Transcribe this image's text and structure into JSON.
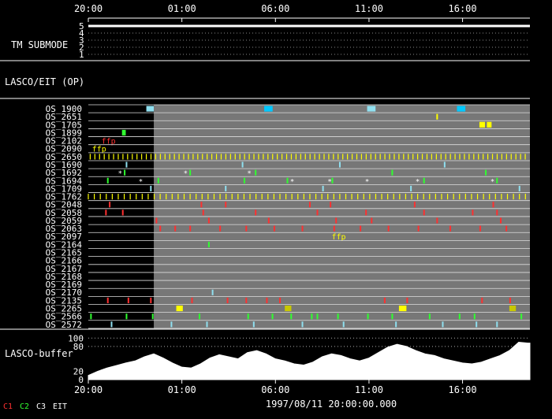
{
  "chart_data": {
    "type": "timeline",
    "title": "",
    "time_axis": {
      "ticks_top": [
        "20:00",
        "01:00",
        "06:00",
        "11:00",
        "16:00"
      ],
      "ticks_bottom": [
        "20:00",
        "01:00",
        "06:00",
        "11:00",
        "16:00"
      ],
      "range_hours": [
        0,
        23.6
      ]
    },
    "footer_label": "1997/08/11 20:00:00.000",
    "legend": [
      {
        "name": "C1",
        "color": "#ff3030"
      },
      {
        "name": "C2",
        "color": "#30ff30"
      },
      {
        "name": "C3",
        "color": "#ffffff"
      },
      {
        "name": "EIT",
        "color": "#ffffff"
      }
    ],
    "tm_panel": {
      "label": "TM SUBMODE",
      "levels": [
        "5",
        "4",
        "3",
        "2",
        "1"
      ],
      "value": 5
    },
    "section_label": "LASCO/EIT (OP)",
    "no_data_until_hours": 3.5,
    "rows": [
      {
        "label": "OS_1900",
        "events": [
          {
            "t": 3.1,
            "w": 0.4,
            "color": "#90e0f0"
          },
          {
            "t": 9.4,
            "w": 0.45,
            "color": "#00c8ff"
          },
          {
            "t": 14.9,
            "w": 0.45,
            "color": "#90e0f0"
          },
          {
            "t": 19.7,
            "w": 0.45,
            "color": "#00c8ff"
          }
        ]
      },
      {
        "label": "OS_2651",
        "events": [
          {
            "t": 18.6,
            "w": 0.08,
            "color": "#ffff00"
          }
        ]
      },
      {
        "label": "OS_1705",
        "events": [
          {
            "t": 20.9,
            "w": 0.3,
            "color": "#ffff00"
          },
          {
            "t": 21.3,
            "w": 0.25,
            "color": "#ffff00"
          }
        ]
      },
      {
        "label": "OS_1899",
        "events": [
          {
            "t": 1.8,
            "w": 0.2,
            "color": "#30ff30"
          }
        ]
      },
      {
        "label": "OS_2102",
        "events": [],
        "notes": [
          {
            "t": 0.7,
            "text": "ffp",
            "color": "#ff3030"
          }
        ]
      },
      {
        "label": "OS_2090",
        "events": [],
        "notes": [
          {
            "t": 0.2,
            "text": "ffp",
            "color": "#ffff00"
          }
        ]
      },
      {
        "label": "OS_2650",
        "periodic": {
          "start": 0.1,
          "step": 0.25,
          "end": 23.5,
          "color": "#ffff00"
        }
      },
      {
        "label": "OS_1690",
        "events": [
          {
            "t": 2.0,
            "w": 0.06,
            "color": "#90e0f0"
          },
          {
            "t": 8.2,
            "w": 0.06,
            "color": "#90e0f0"
          },
          {
            "t": 13.4,
            "w": 0.06,
            "color": "#90e0f0"
          },
          {
            "t": 19.0,
            "w": 0.06,
            "color": "#90e0f0"
          }
        ]
      },
      {
        "label": "OS_1692",
        "events": [
          {
            "t": 1.9,
            "w": 0.06,
            "color": "#30ff30"
          },
          {
            "t": 5.4,
            "w": 0.06,
            "color": "#30ff30"
          },
          {
            "t": 8.9,
            "w": 0.06,
            "color": "#30ff30"
          },
          {
            "t": 16.2,
            "w": 0.06,
            "color": "#30ff30"
          },
          {
            "t": 21.2,
            "w": 0.06,
            "color": "#30ff30"
          }
        ],
        "marks": [
          1.7,
          5.2,
          8.6
        ]
      },
      {
        "label": "OS_1694",
        "events": [
          {
            "t": 1.0,
            "w": 0.06,
            "color": "#30ff30"
          },
          {
            "t": 3.7,
            "w": 0.06,
            "color": "#30ff30"
          },
          {
            "t": 8.3,
            "w": 0.06,
            "color": "#30ff30"
          },
          {
            "t": 10.6,
            "w": 0.06,
            "color": "#30ff30"
          },
          {
            "t": 13.0,
            "w": 0.06,
            "color": "#30ff30"
          },
          {
            "t": 17.9,
            "w": 0.06,
            "color": "#30ff30"
          },
          {
            "t": 21.8,
            "w": 0.06,
            "color": "#30ff30"
          }
        ],
        "marks": [
          2.8,
          10.9,
          12.9,
          14.9,
          17.6,
          21.6
        ]
      },
      {
        "label": "OS_1709",
        "events": [
          {
            "t": 3.3,
            "w": 0.06,
            "color": "#90e0f0"
          },
          {
            "t": 7.3,
            "w": 0.06,
            "color": "#90e0f0"
          },
          {
            "t": 12.5,
            "w": 0.06,
            "color": "#90e0f0"
          },
          {
            "t": 17.2,
            "w": 0.06,
            "color": "#90e0f0"
          },
          {
            "t": 23.0,
            "w": 0.06,
            "color": "#90e0f0"
          }
        ]
      },
      {
        "label": "OS_1762",
        "periodic": {
          "start": 0.0,
          "step": 0.32,
          "end": 23.6,
          "color": "#ffff00"
        }
      },
      {
        "label": "OS_2048",
        "events": [
          {
            "t": 1.1,
            "w": 0.07,
            "color": "#ff3030"
          },
          {
            "t": 6.0,
            "w": 0.07,
            "color": "#ff3030"
          },
          {
            "t": 7.3,
            "w": 0.07,
            "color": "#ff3030"
          },
          {
            "t": 11.8,
            "w": 0.07,
            "color": "#ff3030"
          },
          {
            "t": 12.9,
            "w": 0.07,
            "color": "#ff3030"
          },
          {
            "t": 17.4,
            "w": 0.07,
            "color": "#ff3030"
          },
          {
            "t": 21.6,
            "w": 0.07,
            "color": "#ff3030"
          }
        ]
      },
      {
        "label": "OS_2058",
        "events": [
          {
            "t": 0.9,
            "w": 0.07,
            "color": "#ff3030"
          },
          {
            "t": 1.8,
            "w": 0.07,
            "color": "#ff3030"
          },
          {
            "t": 6.1,
            "w": 0.07,
            "color": "#ff3030"
          },
          {
            "t": 8.9,
            "w": 0.07,
            "color": "#ff3030"
          },
          {
            "t": 12.2,
            "w": 0.07,
            "color": "#ff3030"
          },
          {
            "t": 14.8,
            "w": 0.07,
            "color": "#ff3030"
          },
          {
            "t": 17.9,
            "w": 0.07,
            "color": "#ff3030"
          },
          {
            "t": 20.5,
            "w": 0.07,
            "color": "#ff3030"
          },
          {
            "t": 21.8,
            "w": 0.07,
            "color": "#ff3030"
          }
        ]
      },
      {
        "label": "OS_2059",
        "events": [
          {
            "t": 3.6,
            "w": 0.07,
            "color": "#ff3030"
          },
          {
            "t": 6.4,
            "w": 0.07,
            "color": "#ff3030"
          },
          {
            "t": 9.6,
            "w": 0.07,
            "color": "#ff3030"
          },
          {
            "t": 13.2,
            "w": 0.07,
            "color": "#ff3030"
          },
          {
            "t": 15.1,
            "w": 0.07,
            "color": "#ff3030"
          },
          {
            "t": 18.6,
            "w": 0.07,
            "color": "#ff3030"
          },
          {
            "t": 22.0,
            "w": 0.07,
            "color": "#ff3030"
          }
        ]
      },
      {
        "label": "OS_2063",
        "events": [
          {
            "t": 3.8,
            "w": 0.07,
            "color": "#ff3030"
          },
          {
            "t": 4.6,
            "w": 0.07,
            "color": "#ff3030"
          },
          {
            "t": 5.4,
            "w": 0.07,
            "color": "#ff3030"
          },
          {
            "t": 7.0,
            "w": 0.07,
            "color": "#ff3030"
          },
          {
            "t": 8.4,
            "w": 0.07,
            "color": "#ff3030"
          },
          {
            "t": 9.9,
            "w": 0.07,
            "color": "#ff3030"
          },
          {
            "t": 11.4,
            "w": 0.07,
            "color": "#ff3030"
          },
          {
            "t": 13.1,
            "w": 0.07,
            "color": "#ff3030"
          },
          {
            "t": 14.5,
            "w": 0.07,
            "color": "#ff3030"
          },
          {
            "t": 16.0,
            "w": 0.07,
            "color": "#ff3030"
          },
          {
            "t": 17.6,
            "w": 0.07,
            "color": "#ff3030"
          },
          {
            "t": 19.3,
            "w": 0.07,
            "color": "#ff3030"
          },
          {
            "t": 20.9,
            "w": 0.07,
            "color": "#ff3030"
          },
          {
            "t": 22.3,
            "w": 0.07,
            "color": "#ff3030"
          }
        ]
      },
      {
        "label": "OS_2097",
        "events": [],
        "notes": [
          {
            "t": 13.0,
            "text": "ffp",
            "color": "#ffff00"
          }
        ]
      },
      {
        "label": "OS_2164",
        "events": [
          {
            "t": 6.4,
            "w": 0.06,
            "color": "#30ff30"
          }
        ]
      },
      {
        "label": "OS_2165",
        "events": []
      },
      {
        "label": "OS_2166",
        "events": []
      },
      {
        "label": "OS_2167",
        "events": []
      },
      {
        "label": "OS_2168",
        "events": []
      },
      {
        "label": "OS_2169",
        "events": []
      },
      {
        "label": "OS_2170",
        "events": [
          {
            "t": 6.6,
            "w": 0.06,
            "color": "#90e0f0"
          }
        ]
      },
      {
        "label": "OS_2135",
        "events": [
          {
            "t": 1.0,
            "w": 0.06,
            "color": "#ff3030"
          },
          {
            "t": 2.1,
            "w": 0.06,
            "color": "#ff3030"
          },
          {
            "t": 3.3,
            "w": 0.06,
            "color": "#ff3030"
          },
          {
            "t": 5.5,
            "w": 0.06,
            "color": "#ff3030"
          },
          {
            "t": 7.4,
            "w": 0.06,
            "color": "#ff3030"
          },
          {
            "t": 8.4,
            "w": 0.06,
            "color": "#ff3030"
          },
          {
            "t": 9.5,
            "w": 0.06,
            "color": "#ff3030"
          },
          {
            "t": 10.2,
            "w": 0.06,
            "color": "#ff3030"
          },
          {
            "t": 15.8,
            "w": 0.06,
            "color": "#ff3030"
          },
          {
            "t": 17.0,
            "w": 0.06,
            "color": "#ff3030"
          },
          {
            "t": 21.0,
            "w": 0.06,
            "color": "#ff3030"
          },
          {
            "t": 22.5,
            "w": 0.06,
            "color": "#ff3030"
          }
        ]
      },
      {
        "label": "OS_2265",
        "events": [
          {
            "t": 4.7,
            "w": 0.35,
            "color": "#ffff00"
          },
          {
            "t": 10.5,
            "w": 0.35,
            "color": "#c8c800"
          },
          {
            "t": 16.6,
            "w": 0.4,
            "color": "#ffff00"
          },
          {
            "t": 22.5,
            "w": 0.35,
            "color": "#c8c800"
          }
        ]
      },
      {
        "label": "OS_2566",
        "events": [
          {
            "t": 0.1,
            "w": 0.06,
            "color": "#30ff30"
          },
          {
            "t": 2.0,
            "w": 0.06,
            "color": "#30ff30"
          },
          {
            "t": 3.4,
            "w": 0.06,
            "color": "#30ff30"
          },
          {
            "t": 5.9,
            "w": 0.06,
            "color": "#30ff30"
          },
          {
            "t": 8.5,
            "w": 0.06,
            "color": "#30ff30"
          },
          {
            "t": 9.8,
            "w": 0.06,
            "color": "#30ff30"
          },
          {
            "t": 10.8,
            "w": 0.06,
            "color": "#30ff30"
          },
          {
            "t": 11.9,
            "w": 0.06,
            "color": "#30ff30"
          },
          {
            "t": 12.2,
            "w": 0.06,
            "color": "#30ff30"
          },
          {
            "t": 13.3,
            "w": 0.06,
            "color": "#30ff30"
          },
          {
            "t": 14.9,
            "w": 0.06,
            "color": "#30ff30"
          },
          {
            "t": 16.2,
            "w": 0.06,
            "color": "#30ff30"
          },
          {
            "t": 18.2,
            "w": 0.06,
            "color": "#30ff30"
          },
          {
            "t": 19.8,
            "w": 0.06,
            "color": "#30ff30"
          },
          {
            "t": 20.6,
            "w": 0.06,
            "color": "#30ff30"
          },
          {
            "t": 23.1,
            "w": 0.06,
            "color": "#30ff30"
          }
        ]
      },
      {
        "label": "OS_2572",
        "events": [
          {
            "t": 1.2,
            "w": 0.06,
            "color": "#90e0f0"
          },
          {
            "t": 4.4,
            "w": 0.06,
            "color": "#90e0f0"
          },
          {
            "t": 6.3,
            "w": 0.06,
            "color": "#90e0f0"
          },
          {
            "t": 8.8,
            "w": 0.06,
            "color": "#90e0f0"
          },
          {
            "t": 11.4,
            "w": 0.06,
            "color": "#90e0f0"
          },
          {
            "t": 13.6,
            "w": 0.06,
            "color": "#90e0f0"
          },
          {
            "t": 16.4,
            "w": 0.06,
            "color": "#90e0f0"
          },
          {
            "t": 18.9,
            "w": 0.06,
            "color": "#90e0f0"
          },
          {
            "t": 20.7,
            "w": 0.06,
            "color": "#90e0f0"
          },
          {
            "t": 21.8,
            "w": 0.06,
            "color": "#90e0f0"
          }
        ]
      }
    ],
    "buffer": {
      "label": "LASCO-buffer",
      "yticks": [
        "100",
        "80",
        "20",
        "0"
      ],
      "ytick_values": [
        100,
        80,
        20,
        0
      ],
      "ylim": [
        0,
        110
      ],
      "t": [
        0,
        0.5,
        1,
        1.5,
        2,
        2.5,
        3,
        3.5,
        4,
        4.5,
        5,
        5.5,
        6,
        6.5,
        7,
        7.5,
        8,
        8.5,
        9,
        9.5,
        10,
        10.5,
        11,
        11.5,
        12,
        12.5,
        13,
        13.5,
        14,
        14.5,
        15,
        15.5,
        16,
        16.5,
        17,
        17.5,
        18,
        18.5,
        19,
        19.5,
        20,
        20.5,
        21,
        21.5,
        22,
        22.5,
        23,
        23.5
      ],
      "values": [
        10,
        20,
        28,
        34,
        40,
        45,
        55,
        62,
        52,
        40,
        30,
        28,
        38,
        52,
        60,
        55,
        50,
        65,
        70,
        62,
        50,
        45,
        38,
        35,
        42,
        55,
        62,
        58,
        50,
        45,
        52,
        65,
        78,
        85,
        80,
        70,
        62,
        58,
        50,
        45,
        40,
        38,
        42,
        50,
        58,
        70,
        90,
        88
      ]
    }
  }
}
